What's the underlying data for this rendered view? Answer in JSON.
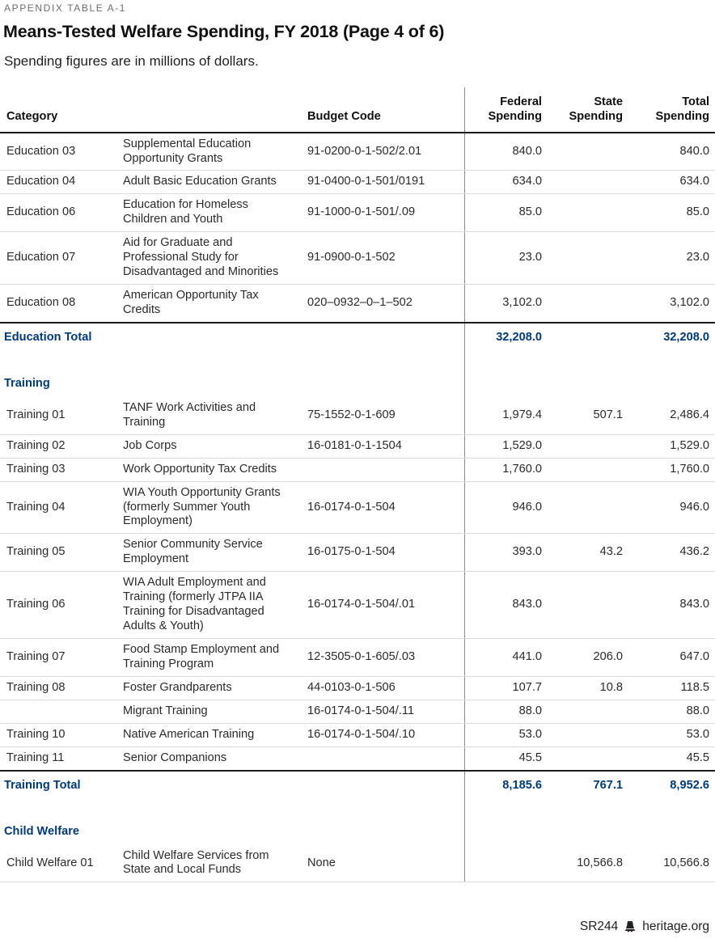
{
  "page": {
    "appendix_label": "APPENDIX TABLE A-1",
    "title": "Means-Tested Welfare Spending, FY 2018 (Page 4 of 6)",
    "subtitle": "Spending figures are in millions of dollars.",
    "footer": {
      "report_code": "SR244",
      "logo_icon": "liberty-bell-icon",
      "website": "heritage.org"
    }
  },
  "colors": {
    "accent_navy": "#003a7c",
    "row_divider": "#dcdcdc",
    "strong_rule": "#1a1a1a",
    "column_divider": "#8c8c8c",
    "muted_text": "#6d6d6d"
  },
  "table": {
    "headers": {
      "category": "Category",
      "program": "",
      "budget_code": "Budget Code",
      "federal": "Federal Spending",
      "state": "State Spending",
      "total": "Total Spending"
    },
    "rows": [
      {
        "type": "item",
        "category": "Education 03",
        "program": "Supplemental Education Opportunity Grants",
        "budget_code": "91-0200-0-1-502/2.01",
        "federal": "840.0",
        "state": "",
        "total": "840.0"
      },
      {
        "type": "item",
        "category": "Education 04",
        "program": "Adult Basic Education Grants",
        "budget_code": "91-0400-0-1-501/0191",
        "federal": "634.0",
        "state": "",
        "total": "634.0"
      },
      {
        "type": "item",
        "category": "Education 06",
        "program": "Education for Homeless Children and Youth",
        "budget_code": "91-1000-0-1-501/.09",
        "federal": "85.0",
        "state": "",
        "total": "85.0"
      },
      {
        "type": "item",
        "category": "Education 07",
        "program": "Aid for Graduate and Professional Study for Disadvantaged and Minorities",
        "budget_code": "91-0900-0-1-502",
        "federal": "23.0",
        "state": "",
        "total": "23.0"
      },
      {
        "type": "item",
        "category": "Education 08",
        "program": "American Opportunity Tax Credits",
        "budget_code": "020–0932–0–1–502",
        "federal": "3,102.0",
        "state": "",
        "total": "3,102.0"
      },
      {
        "type": "total",
        "label": "Education Total",
        "federal": "32,208.0",
        "state": "",
        "total": "32,208.0"
      },
      {
        "type": "section",
        "label": "Training"
      },
      {
        "type": "item",
        "category": "Training 01",
        "program": "TANF Work Activities and Training",
        "budget_code": "75-1552-0-1-609",
        "federal": "1,979.4",
        "state": "507.1",
        "total": "2,486.4"
      },
      {
        "type": "item",
        "category": "Training 02",
        "program": "Job Corps",
        "budget_code": "16-0181-0-1-1504",
        "federal": "1,529.0",
        "state": "",
        "total": "1,529.0"
      },
      {
        "type": "item",
        "category": "Training 03",
        "program": "Work Opportunity Tax Credits",
        "budget_code": "",
        "federal": "1,760.0",
        "state": "",
        "total": "1,760.0"
      },
      {
        "type": "item",
        "category": "Training 04",
        "program": "WIA Youth Opportunity Grants (formerly Summer Youth Employment)",
        "budget_code": "16-0174-0-1-504",
        "federal": "946.0",
        "state": "",
        "total": "946.0"
      },
      {
        "type": "item",
        "category": "Training 05",
        "program": "Senior Community Service Employment",
        "budget_code": "16-0175-0-1-504",
        "federal": "393.0",
        "state": "43.2",
        "total": "436.2"
      },
      {
        "type": "item",
        "category": "Training 06",
        "program": "WIA Adult Employment and Training (formerly JTPA IIA Training for Disadvantaged Adults & Youth)",
        "budget_code": "16-0174-0-1-504/.01",
        "federal": "843.0",
        "state": "",
        "total": "843.0"
      },
      {
        "type": "item",
        "category": "Training 07",
        "program": "Food Stamp Employment and Training Program",
        "budget_code": "12-3505-0-1-605/.03",
        "federal": "441.0",
        "state": "206.0",
        "total": "647.0"
      },
      {
        "type": "item",
        "category": "Training 08",
        "program": "Foster Grandparents",
        "budget_code": "44-0103-0-1-506",
        "federal": "107.7",
        "state": "10.8",
        "total": "118.5"
      },
      {
        "type": "item",
        "category": "",
        "program": "Migrant Training",
        "budget_code": "16-0174-0-1-504/.11",
        "federal": "88.0",
        "state": "",
        "total": "88.0"
      },
      {
        "type": "item",
        "category": "Training 10",
        "program": "Native American Training",
        "budget_code": "16-0174-0-1-504/.10",
        "federal": "53.0",
        "state": "",
        "total": "53.0"
      },
      {
        "type": "item",
        "category": "Training 11",
        "program": "Senior Companions",
        "budget_code": "",
        "federal": "45.5",
        "state": "",
        "total": "45.5"
      },
      {
        "type": "total",
        "label": "Training Total",
        "federal": "8,185.6",
        "state": "767.1",
        "total": "8,952.6"
      },
      {
        "type": "section",
        "label": "Child Welfare"
      },
      {
        "type": "item",
        "category": "Child Welfare 01",
        "program": "Child Welfare Services from State and Local Funds",
        "budget_code": "None",
        "federal": "",
        "state": "10,566.8",
        "total": "10,566.8"
      }
    ]
  }
}
